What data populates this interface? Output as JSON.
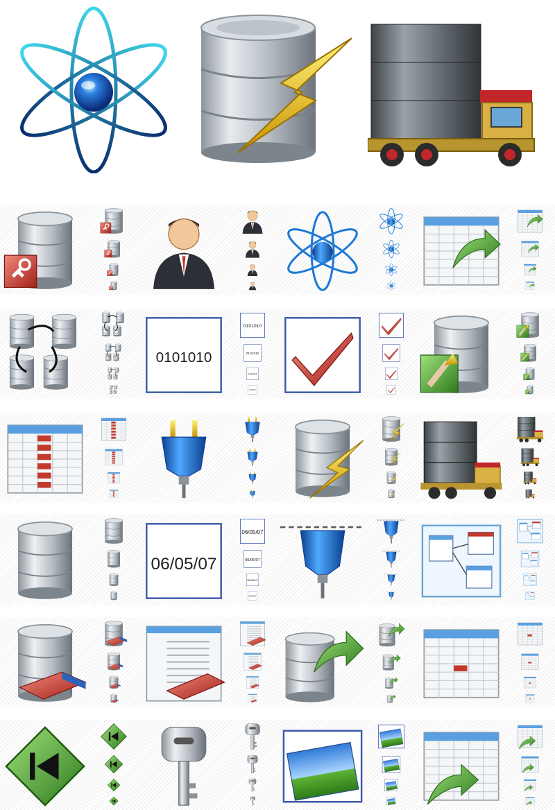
{
  "hero": {
    "icons": [
      "atom-icon",
      "database-lightning-icon",
      "database-truck-icon"
    ]
  },
  "rows": [
    [
      "database-key-icon",
      "user-business-icon",
      "atom-icon",
      "table-export-icon"
    ],
    [
      "database-network-icon",
      "binary-field-icon",
      "checkbox-checked-icon",
      "database-connect-icon"
    ],
    [
      "table-column-icon",
      "plug-icon",
      "database-lightning-icon",
      "database-truck-icon"
    ],
    [
      "database-icon",
      "date-field-icon",
      "plug-connected-icon",
      "diagram-icon"
    ],
    [
      "database-erase-icon",
      "document-erase-icon",
      "database-export-icon",
      "calendar-table-icon"
    ],
    [
      "navigate-first-icon",
      "key-icon",
      "picture-icon",
      "table-export-partial-icon"
    ]
  ],
  "labels": {
    "binary": "0101010",
    "date": "06/05/07"
  },
  "colors": {
    "blue": "#1f6fd1",
    "red": "#c23a2b",
    "silver": "#b8bec5",
    "green": "#3a8a2a"
  }
}
